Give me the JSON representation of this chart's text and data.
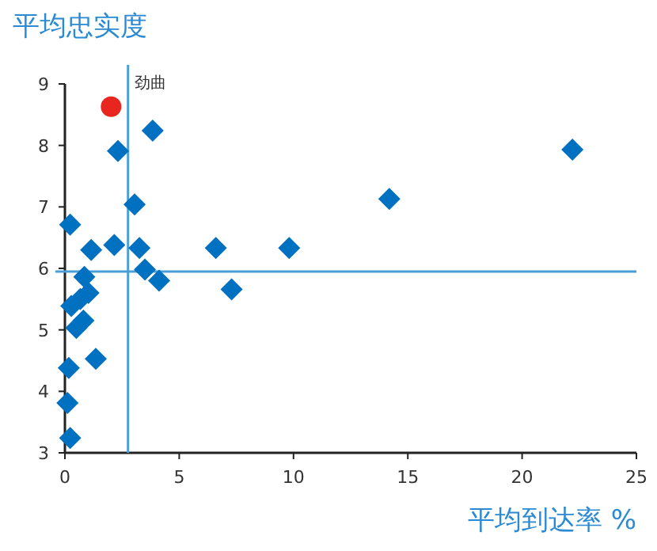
{
  "chart_data": {
    "type": "scatter",
    "xlabel": "平均到达率 %",
    "ylabel": "平均忠实度",
    "xlim": [
      0,
      25
    ],
    "ylim": [
      3,
      9
    ],
    "xticks": [
      0,
      5,
      10,
      15,
      20,
      25
    ],
    "yticks": [
      3,
      4,
      5,
      6,
      7,
      8,
      9
    ],
    "grid": false,
    "series": [
      {
        "color": "#0070c0",
        "marker": "diamond",
        "x": [
          3.84,
          2.32,
          3.05,
          0.23,
          1.15,
          2.16,
          3.26,
          6.6,
          9.81,
          3.5,
          4.12,
          7.29,
          0.85,
          1.03,
          0.67,
          0.28,
          0.81,
          0.5,
          1.35,
          0.17,
          0.11,
          0.23,
          22.2,
          14.19
        ],
        "values": [
          8.24,
          7.91,
          7.04,
          6.71,
          6.3,
          6.38,
          6.33,
          6.33,
          6.33,
          5.98,
          5.8,
          5.66,
          5.86,
          5.6,
          5.5,
          5.39,
          5.15,
          5.03,
          4.53,
          4.38,
          3.81,
          3.24,
          7.93,
          7.13
        ]
      },
      {
        "color": "#e8251e",
        "marker": "circle",
        "x": [
          2.02
        ],
        "values": [
          8.63
        ]
      }
    ],
    "ref_lines": [
      {
        "axis": "x",
        "value": 2.76,
        "color": "#4a9fd8"
      },
      {
        "axis": "y",
        "value": 5.95,
        "color": "#4a9fd8"
      }
    ],
    "annotations": [
      {
        "text": "劲曲",
        "x": 2.02,
        "y": 8.63
      }
    ]
  }
}
